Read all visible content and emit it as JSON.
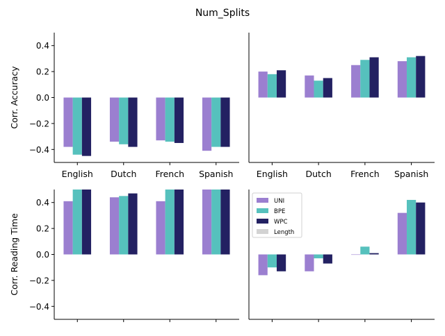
{
  "title": "Num_Splits",
  "colors": {
    "UNI": "#9b7fd0",
    "BPE": "#56c1bd",
    "WPC": "#232162",
    "Length": "#d3d3d3"
  },
  "legend": {
    "placement": "top-left of bottom-right panel",
    "entries": [
      "UNI",
      "BPE",
      "WPC",
      "Length"
    ]
  },
  "chart_data": [
    {
      "type": "bar",
      "panel": "top-left",
      "title": "",
      "xlabel": "",
      "ylabel": "Corr. Accuracy",
      "categories": [
        "English",
        "Dutch",
        "French",
        "Spanish"
      ],
      "ylim": [
        -0.5,
        0.5
      ],
      "yticks": [
        -0.4,
        -0.2,
        0.0,
        0.2,
        0.4
      ],
      "ytick_labels": [
        "−0.4",
        "−0.2",
        "0.0",
        "0.2",
        "0.4"
      ],
      "show_xtick_labels": true,
      "show_yticks": true,
      "series": [
        {
          "name": "UNI",
          "values": [
            -0.38,
            -0.34,
            -0.33,
            -0.41
          ]
        },
        {
          "name": "BPE",
          "values": [
            -0.44,
            -0.36,
            -0.34,
            -0.38
          ]
        },
        {
          "name": "WPC",
          "values": [
            -0.45,
            -0.38,
            -0.35,
            -0.38
          ]
        }
      ]
    },
    {
      "type": "bar",
      "panel": "top-right",
      "title": "",
      "xlabel": "",
      "ylabel": "",
      "categories": [
        "English",
        "Dutch",
        "French",
        "Spanish"
      ],
      "ylim": [
        -0.5,
        0.5
      ],
      "show_xtick_labels": true,
      "show_yticks": false,
      "series": [
        {
          "name": "UNI",
          "values": [
            0.2,
            0.17,
            0.25,
            0.28
          ]
        },
        {
          "name": "BPE",
          "values": [
            0.18,
            0.13,
            0.29,
            0.31
          ]
        },
        {
          "name": "WPC",
          "values": [
            0.21,
            0.15,
            0.31,
            0.32
          ]
        }
      ]
    },
    {
      "type": "bar",
      "panel": "bottom-left",
      "title": "",
      "xlabel": "",
      "ylabel": "Corr. Reading Time",
      "categories": [
        "English",
        "Dutch",
        "French",
        "Spanish"
      ],
      "ylim": [
        -0.5,
        0.5
      ],
      "yticks": [
        -0.4,
        -0.2,
        0.0,
        0.2,
        0.4
      ],
      "ytick_labels": [
        "−0.4",
        "−0.2",
        "0.0",
        "0.2",
        "0.4"
      ],
      "show_xtick_labels": false,
      "show_yticks": true,
      "series": [
        {
          "name": "UNI",
          "values": [
            0.41,
            0.44,
            0.41,
            0.52
          ]
        },
        {
          "name": "BPE",
          "values": [
            0.52,
            0.45,
            0.52,
            0.52
          ]
        },
        {
          "name": "WPC",
          "values": [
            0.52,
            0.47,
            0.52,
            0.52
          ]
        }
      ]
    },
    {
      "type": "bar",
      "panel": "bottom-right",
      "title": "",
      "xlabel": "",
      "ylabel": "",
      "categories": [
        "English",
        "Dutch",
        "French",
        "Spanish"
      ],
      "ylim": [
        -0.5,
        0.5
      ],
      "show_xtick_labels": false,
      "show_yticks": false,
      "legend": true,
      "series": [
        {
          "name": "UNI",
          "values": [
            -0.16,
            -0.13,
            0.0,
            0.32
          ]
        },
        {
          "name": "BPE",
          "values": [
            -0.1,
            -0.03,
            0.06,
            0.42
          ]
        },
        {
          "name": "WPC",
          "values": [
            -0.13,
            -0.07,
            0.01,
            0.4
          ]
        }
      ]
    }
  ]
}
